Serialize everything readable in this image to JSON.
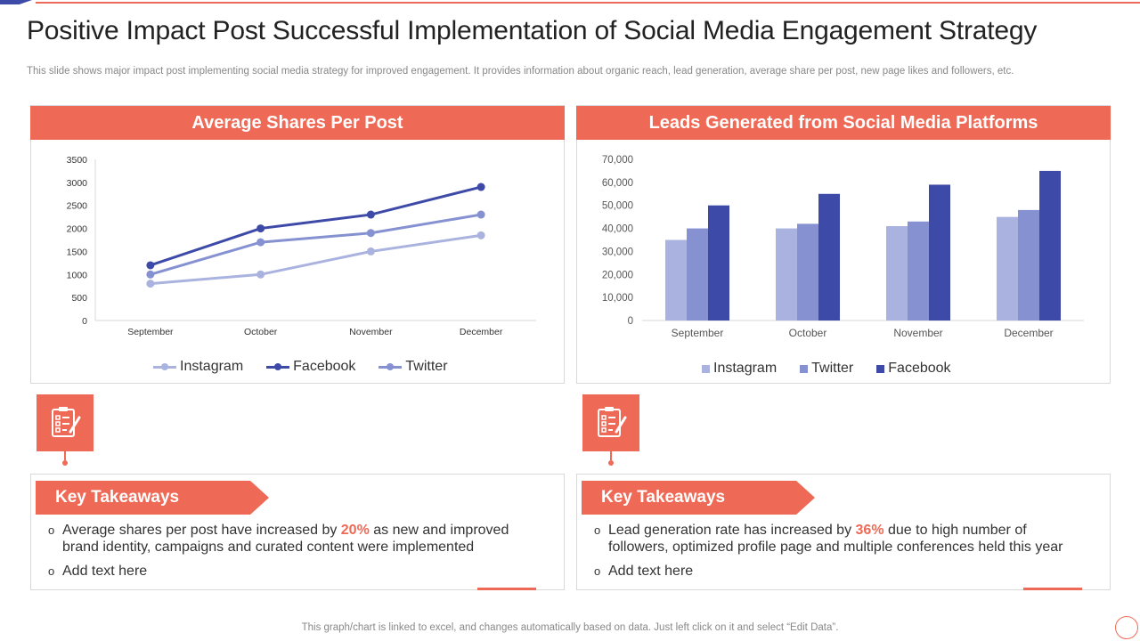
{
  "slide": {
    "title": "Positive Impact Post Successful Implementation of Social Media Engagement Strategy",
    "subtitle": "This slide shows major impact post implementing social media strategy for improved engagement. It provides information about organic reach, lead generation, average share per post, new page likes and followers, etc.",
    "footer": "This graph/chart is linked to excel, and changes automatically based on data. Just left click on it and select “Edit Data”."
  },
  "colors": {
    "accent": "#ef6a56",
    "instagram": "#aab3df",
    "twitter": "#8591d1",
    "facebook": "#3e4aa8"
  },
  "icons": {
    "clipboard": "clipboard-checklist-icon"
  },
  "left_panel": {
    "header": "Average Shares Per Post",
    "legend": [
      "Instagram",
      "Facebook",
      "Twitter"
    ],
    "takeaways": {
      "title": "Key Takeaways",
      "item1_pre": "Average shares per post have increased by ",
      "item1_highlight": "20%",
      "item1_post": " as new and improved brand identity, campaigns and curated content were implemented",
      "item2": "Add text here"
    }
  },
  "right_panel": {
    "header": "Leads Generated from Social Media Platforms",
    "legend": [
      "Instagram",
      "Twitter",
      "Facebook"
    ],
    "takeaways": {
      "title": "Key Takeaways",
      "item1_pre": "Lead generation rate has increased  by ",
      "item1_highlight": "36%",
      "item1_post": " due to high number of followers, optimized profile page and multiple conferences held this year",
      "item2": "Add text here"
    }
  },
  "chart_data": [
    {
      "type": "line",
      "title": "Average Shares Per Post",
      "categories": [
        "September",
        "October",
        "November",
        "December"
      ],
      "y_ticks": [
        "0",
        "500",
        "1000",
        "1500",
        "2000",
        "2500",
        "3000",
        "3500"
      ],
      "ylim": [
        0,
        3500
      ],
      "series": [
        {
          "name": "Instagram",
          "values": [
            800,
            1000,
            1500,
            1850
          ]
        },
        {
          "name": "Facebook",
          "values": [
            1200,
            2000,
            2300,
            2900
          ]
        },
        {
          "name": "Twitter",
          "values": [
            1000,
            1700,
            1900,
            2300
          ]
        }
      ],
      "legend": "bottom"
    },
    {
      "type": "bar",
      "title": "Leads Generated from Social Media Platforms",
      "categories": [
        "September",
        "October",
        "November",
        "December"
      ],
      "y_ticks": [
        "0",
        "10,000",
        "20,000",
        "30,000",
        "40,000",
        "50,000",
        "60,000",
        "70,000"
      ],
      "ylim": [
        0,
        70000
      ],
      "series": [
        {
          "name": "Instagram",
          "values": [
            35000,
            40000,
            41000,
            45000
          ]
        },
        {
          "name": "Twitter",
          "values": [
            40000,
            42000,
            43000,
            48000
          ]
        },
        {
          "name": "Facebook",
          "values": [
            50000,
            55000,
            59000,
            65000
          ]
        }
      ],
      "legend": "bottom"
    }
  ]
}
